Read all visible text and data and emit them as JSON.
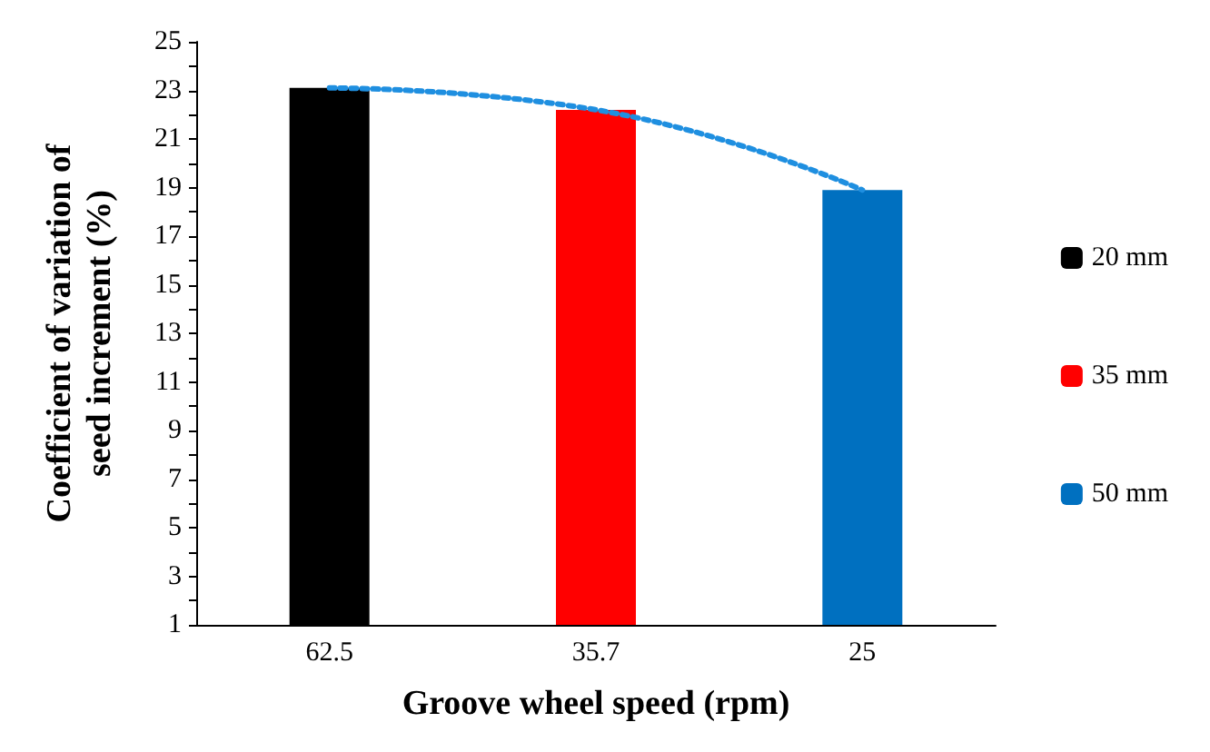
{
  "chart_data": {
    "type": "bar",
    "xlabel": "Groove wheel speed (rpm)",
    "ylabel": "Coefficient of variation of\nseed increment (%)",
    "categories": [
      "62.5",
      "35.7",
      "25"
    ],
    "series": [
      {
        "name": "20 mm",
        "color": "#000000",
        "values": [
          23.1,
          null,
          null
        ]
      },
      {
        "name": "35 mm",
        "color": "#ff0000",
        "values": [
          null,
          22.2,
          null
        ]
      },
      {
        "name": "50 mm",
        "color": "#0070c0",
        "values": [
          null,
          null,
          18.9
        ]
      },
      {
        "type": "line",
        "color": "#1f8fe0",
        "line_style": "dotted",
        "marker": "none",
        "values": [
          23.1,
          22.2,
          18.9
        ]
      }
    ],
    "ylim": [
      1,
      25
    ],
    "yticks": [
      1,
      {
        "value": 2,
        "label": null
      },
      3,
      {
        "value": 4,
        "label": null
      },
      5,
      {
        "value": 6,
        "label": null
      },
      7,
      {
        "value": 8,
        "label": null
      },
      9,
      {
        "value": 10,
        "label": null
      },
      11,
      {
        "value": 12,
        "label": null
      },
      13,
      {
        "value": 14,
        "label": null
      },
      15,
      {
        "value": 16,
        "label": null
      },
      17,
      {
        "value": 18,
        "label": null
      },
      19,
      {
        "value": 20,
        "label": null
      },
      21,
      {
        "value": 22,
        "label": null
      },
      23,
      {
        "value": 24,
        "label": null
      },
      25
    ],
    "grid": false,
    "legend": "right"
  }
}
